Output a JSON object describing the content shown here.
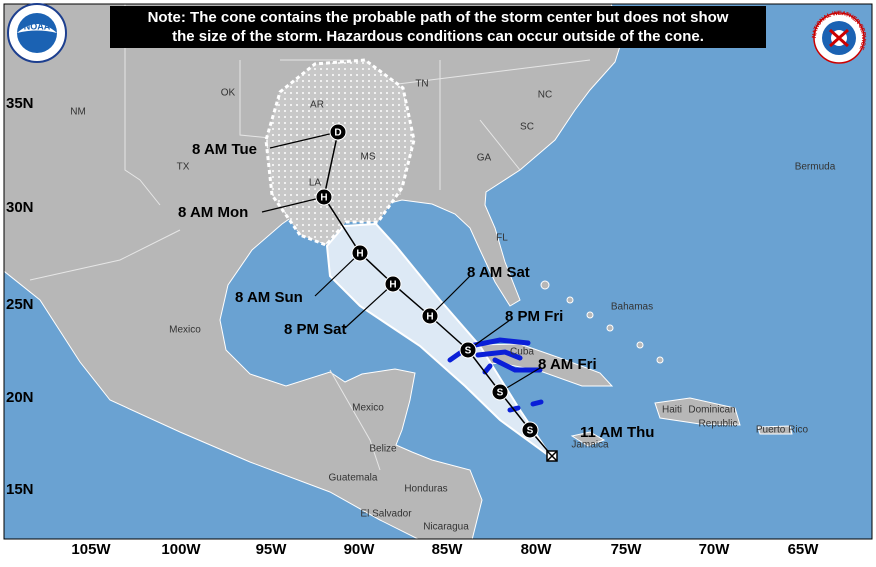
{
  "note": {
    "line1": "Note: The cone contains the probable path of the storm center but does not show",
    "line2": "the size of the storm. Hazardous conditions can occur outside of the cone."
  },
  "logos": {
    "noaa": "NOAA",
    "nws": "NATIONAL WEATHER SERVICE"
  },
  "lat_labels": [
    "35N",
    "30N",
    "25N",
    "20N",
    "15N"
  ],
  "lon_labels": [
    "105W",
    "100W",
    "95W",
    "90W",
    "85W",
    "80W",
    "75W",
    "70W",
    "65W"
  ],
  "places": [
    "NM",
    "OK",
    "AR",
    "TN",
    "NC",
    "SC",
    "GA",
    "MS",
    "TX",
    "LA",
    "FL",
    "Bermuda",
    "Bahamas",
    "Cuba",
    "Mexico",
    "Mexico",
    "Jamaica",
    "Haiti",
    "Dominican",
    "Republic",
    "Puerto Rico",
    "Belize",
    "Guatemala",
    "Honduras",
    "El Salvador",
    "Nicaragua"
  ],
  "track": {
    "current": {
      "label": "11 AM Thu"
    },
    "points": [
      {
        "symbol": "S"
      },
      {
        "symbol": "S",
        "label": "8 AM Fri"
      },
      {
        "symbol": "S",
        "label": "8 PM Fri"
      },
      {
        "symbol": "H",
        "label": "8 AM Sat"
      },
      {
        "symbol": "H",
        "label": "8 PM Sat"
      },
      {
        "symbol": "H",
        "label": "8 AM Sun"
      },
      {
        "symbol": "H",
        "label": "8 AM Mon"
      },
      {
        "symbol": "D",
        "label": "8 AM Tue"
      }
    ]
  }
}
